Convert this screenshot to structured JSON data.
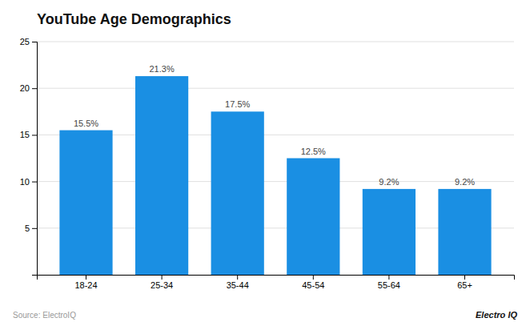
{
  "chart_data": {
    "type": "bar",
    "title": "YouTube Age Demographics",
    "categories": [
      "18-24",
      "25-34",
      "35-44",
      "45-54",
      "55-64",
      "65+"
    ],
    "values": [
      15.5,
      21.3,
      17.5,
      12.5,
      9.2,
      9.2
    ],
    "value_labels": [
      "15.5%",
      "21.3%",
      "17.5%",
      "12.5%",
      "9.2%",
      "9.2%"
    ],
    "data_labels": true,
    "color": "#1a8fe3",
    "ylim": [
      0,
      25
    ],
    "yticks": [
      5,
      10,
      15,
      20,
      25
    ],
    "grid": true,
    "annotations": [
      "Source: ElectroIQ",
      "Electro IQ"
    ]
  }
}
